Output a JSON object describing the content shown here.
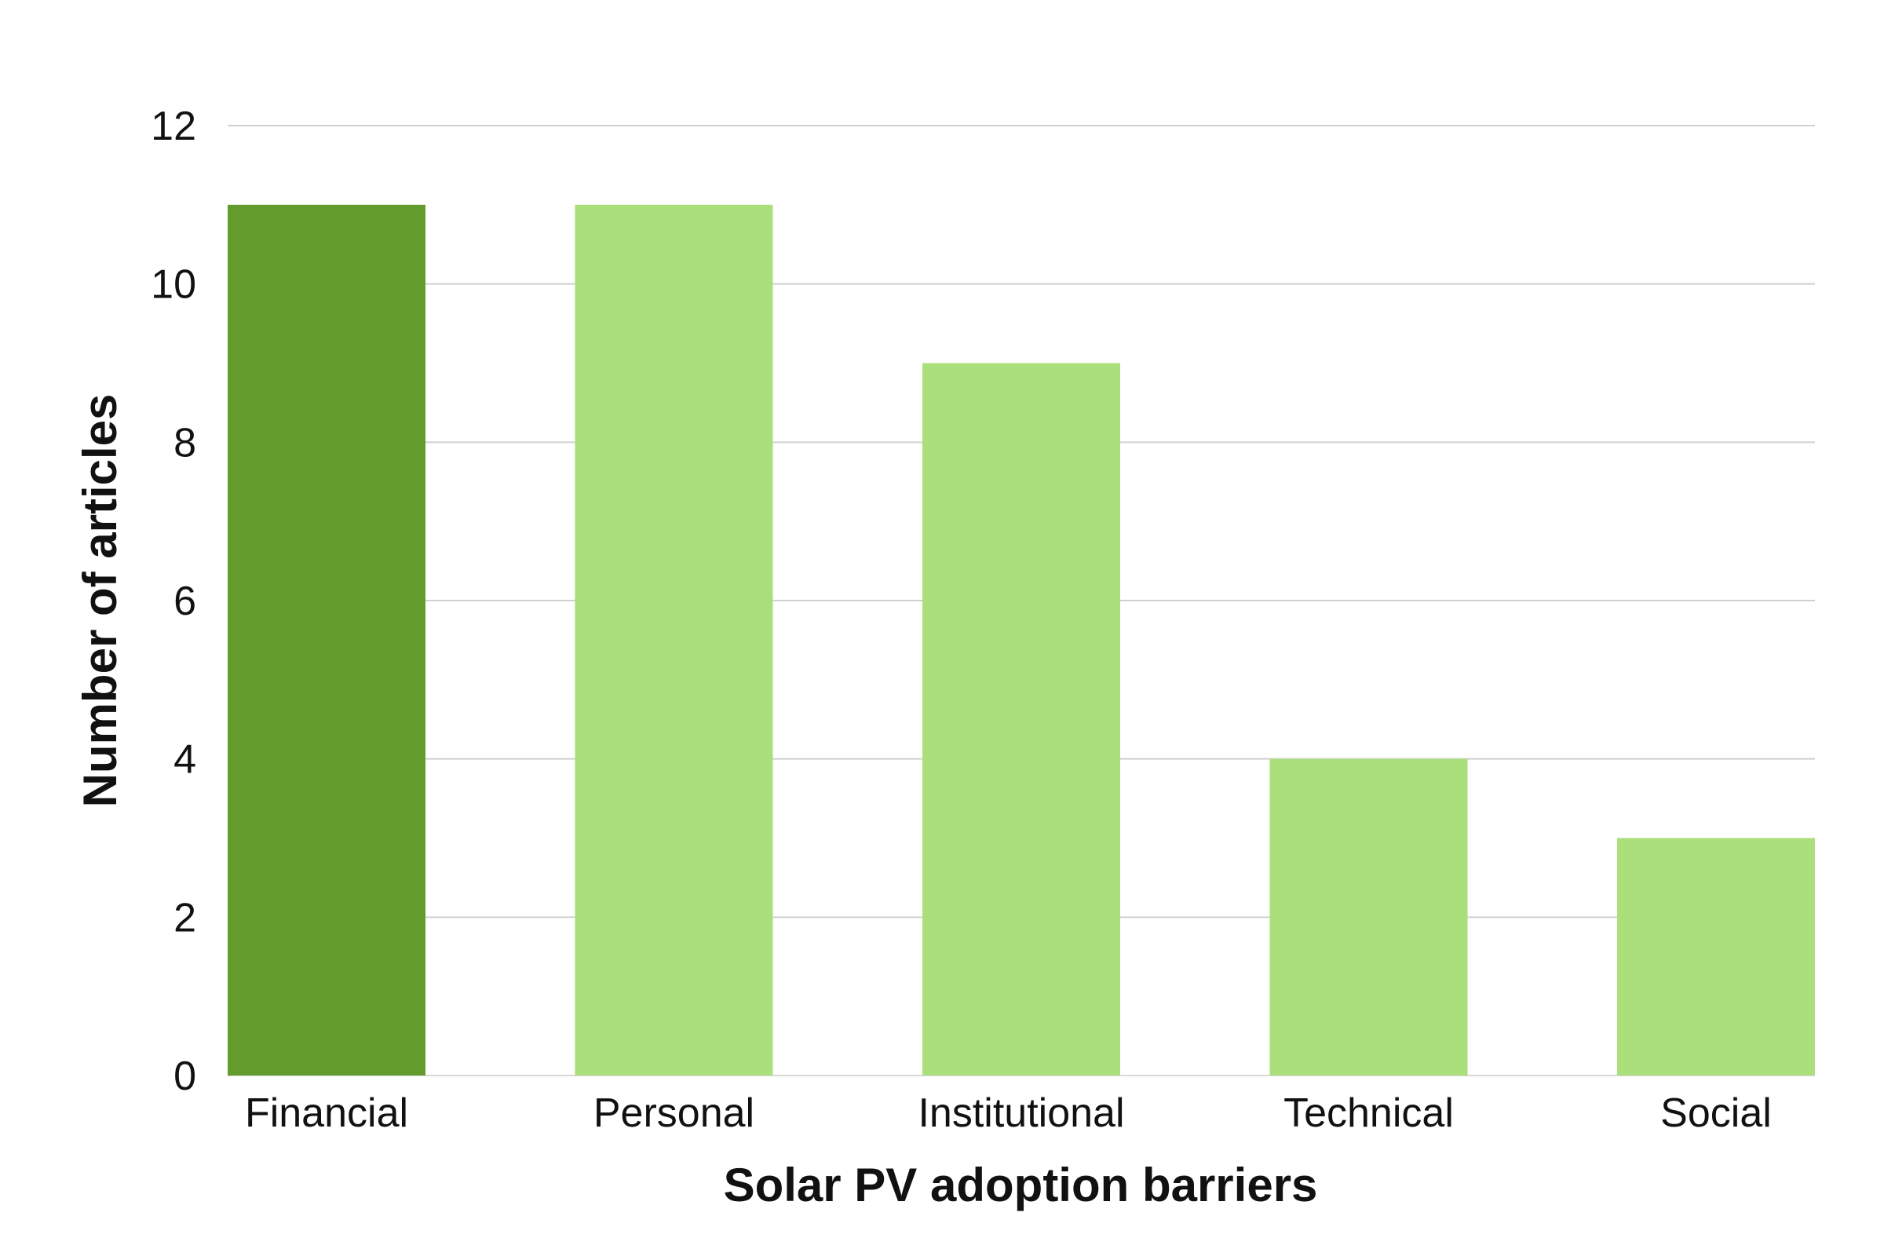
{
  "chart_data": {
    "type": "bar",
    "categories": [
      "Financial",
      "Personal",
      "Institutional",
      "Technical",
      "Social"
    ],
    "values": [
      11,
      11,
      9,
      4,
      3
    ],
    "xlabel": "Solar PV adoption barriers",
    "ylabel": "Number of articles",
    "ylim": [
      0,
      12
    ],
    "yticks": [
      "0",
      "2",
      "4",
      "6",
      "8",
      "10",
      "12"
    ],
    "grid": true,
    "legend": "none",
    "colors": {
      "highlight": "#639c2d",
      "default": "#abdf7b"
    },
    "highlight_index": 0
  }
}
